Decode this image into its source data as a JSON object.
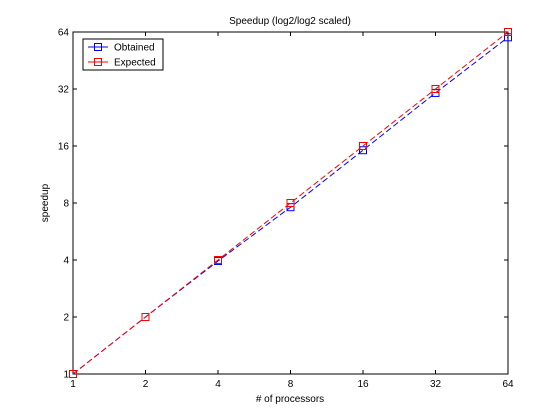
{
  "chart_data": {
    "type": "line",
    "title": "Speedup (log2/log2 scaled)",
    "xlabel": "# of processors",
    "ylabel": "speedup",
    "xscale": "log2",
    "yscale": "log2",
    "xlim": [
      1,
      64
    ],
    "ylim": [
      1,
      64
    ],
    "xticks": [
      "1",
      "2",
      "4",
      "8",
      "16",
      "32",
      "64"
    ],
    "yticks": [
      "1",
      "2",
      "4",
      "8",
      "16",
      "32",
      "64"
    ],
    "grid": false,
    "legend_position": "top-left",
    "x": [
      1,
      2,
      4,
      8,
      16,
      32,
      64
    ],
    "series": [
      {
        "name": "Obtained",
        "color": "#0000ff",
        "marker": "square",
        "line_style": "dashed",
        "values": [
          1,
          2,
          3.95,
          7.6,
          15.2,
          30.5,
          60
        ]
      },
      {
        "name": "Expected",
        "color": "#ff0000",
        "marker": "square",
        "line_style": "dashed",
        "values": [
          1,
          2,
          4,
          8,
          16,
          32,
          64
        ]
      }
    ]
  }
}
